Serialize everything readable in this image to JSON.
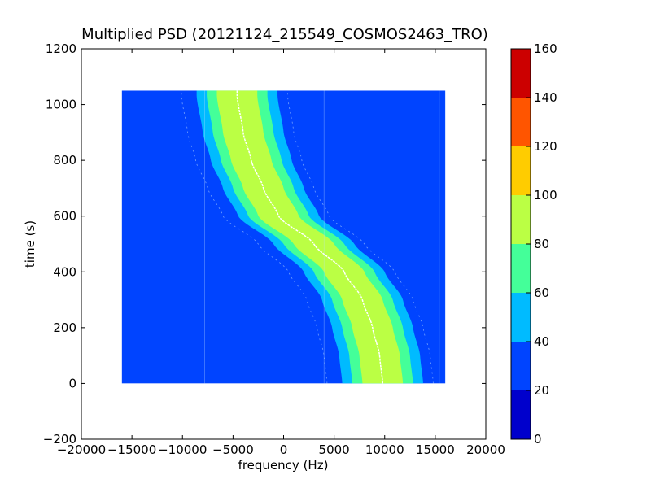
{
  "figure": {
    "title": "Multiplied PSD (20121124_215549_COSMOS2463_TRO)",
    "xlabel": "frequency (Hz)",
    "ylabel": "time (s)"
  },
  "chart_data": {
    "type": "heatmap",
    "title": "Multiplied PSD (20121124_215549_COSMOS2463_TRO)",
    "xlabel": "frequency (Hz)",
    "ylabel": "time (s)",
    "xlim": [
      -20000,
      20000
    ],
    "ylim": [
      -200,
      1200
    ],
    "x_ticks": [
      -20000,
      -15000,
      -10000,
      -5000,
      0,
      5000,
      10000,
      15000,
      20000
    ],
    "y_ticks": [
      -200,
      0,
      200,
      400,
      600,
      800,
      1000,
      1200
    ],
    "x_tick_labels": [
      "−20000",
      "−15000",
      "−10000",
      "−5000",
      "0",
      "5000",
      "10000",
      "15000",
      "20000"
    ],
    "y_tick_labels": [
      "−200",
      "0",
      "200",
      "400",
      "600",
      "800",
      "1000",
      "1200"
    ],
    "data_extent": {
      "x": [
        -16000,
        16000
      ],
      "y": [
        0,
        1050
      ]
    },
    "background_value_range": [
      20,
      40
    ],
    "colorbar": {
      "range": [
        0,
        160
      ],
      "ticks": [
        0,
        20,
        40,
        60,
        80,
        100,
        120,
        140,
        160
      ],
      "tick_labels": [
        "0",
        "20",
        "40",
        "60",
        "80",
        "100",
        "120",
        "140",
        "160"
      ],
      "levels": [
        {
          "from": 0,
          "to": 20,
          "color": "#0000cc"
        },
        {
          "from": 20,
          "to": 40,
          "color": "#0044ff"
        },
        {
          "from": 40,
          "to": 60,
          "color": "#00bbff"
        },
        {
          "from": 60,
          "to": 80,
          "color": "#44ff99"
        },
        {
          "from": 80,
          "to": 100,
          "color": "#bbff44"
        },
        {
          "from": 100,
          "to": 120,
          "color": "#ffcc00"
        },
        {
          "from": 120,
          "to": 140,
          "color": "#ff5500"
        },
        {
          "from": 140,
          "to": 160,
          "color": "#cc0000"
        }
      ]
    },
    "signal_trace": {
      "description_points": [
        {
          "time": 0,
          "frequency": 9800
        },
        {
          "time": 100,
          "frequency": 9500
        },
        {
          "time": 200,
          "frequency": 8800
        },
        {
          "time": 300,
          "frequency": 7800
        },
        {
          "time": 400,
          "frequency": 6000
        },
        {
          "time": 500,
          "frequency": 3000
        },
        {
          "time": 600,
          "frequency": -500
        },
        {
          "time": 700,
          "frequency": -2000
        },
        {
          "time": 800,
          "frequency": -3200
        },
        {
          "time": 900,
          "frequency": -4000
        },
        {
          "time": 1030,
          "frequency": -4600
        }
      ],
      "bands": [
        {
          "half_width": 4000,
          "value_range": [
            40,
            60
          ]
        },
        {
          "half_width": 3000,
          "value_range": [
            60,
            80
          ]
        },
        {
          "half_width": 2000,
          "value_range": [
            80,
            100
          ]
        }
      ],
      "peak_line_color": "#ffffff"
    },
    "spurs": {
      "offsets": [
        -5500,
        5000
      ],
      "vertical_lines": [
        -7800,
        4000,
        15400,
        16000
      ],
      "color": "#bfe0ff"
    }
  }
}
